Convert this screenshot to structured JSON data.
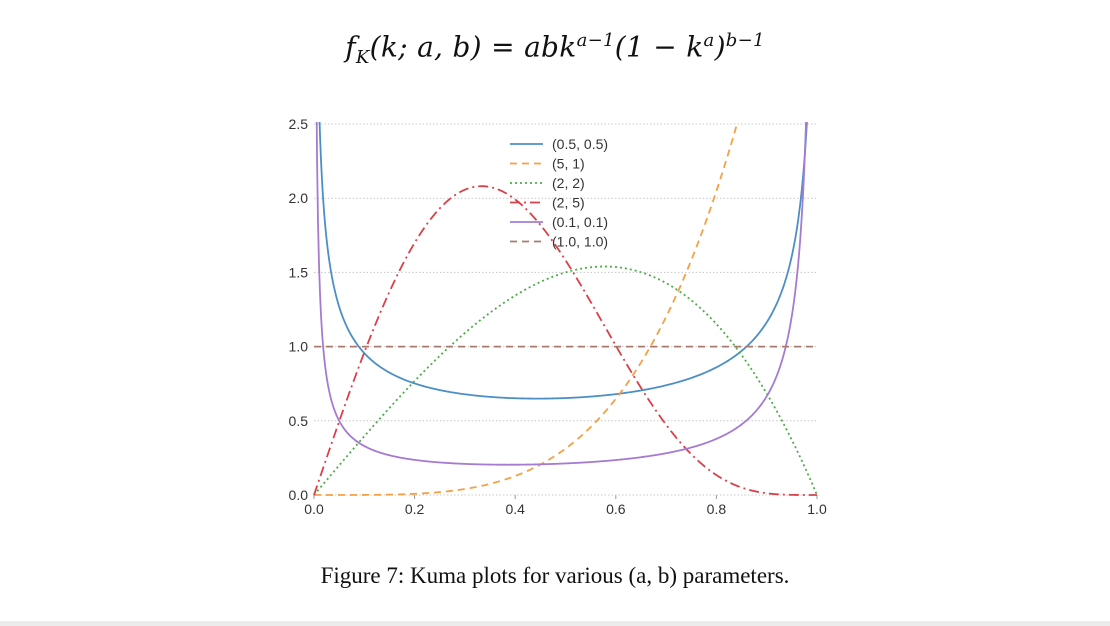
{
  "equation": {
    "lhs": "f",
    "lhs_sub": "K",
    "args": "(k; a, b) = abk",
    "exp1": "a−1",
    "mid": "(1 − k",
    "exp2": "a",
    "close": ")",
    "exp3": "b−1"
  },
  "caption": "Figure 7: Kuma plots for various (a, b) parameters.",
  "chart_data": {
    "type": "line",
    "title": "",
    "xlabel": "",
    "ylabel": "",
    "xlim": [
      0.0,
      1.0
    ],
    "ylim": [
      0.0,
      2.5
    ],
    "grid": "horizontal dotted",
    "legend_position": "upper-center",
    "x_ticks": [
      "0.0",
      "0.2",
      "0.4",
      "0.6",
      "0.8",
      "1.0"
    ],
    "y_ticks": [
      "0.0",
      "0.5",
      "1.0",
      "1.5",
      "2.0",
      "2.5"
    ],
    "series": [
      {
        "name": "(0.5, 0.5)",
        "a": 0.5,
        "b": 0.5,
        "color": "#4c8fc6",
        "dash": "solid"
      },
      {
        "name": "(5, 1)",
        "a": 5,
        "b": 1,
        "color": "#f5a043",
        "dash": "dashed"
      },
      {
        "name": "(2, 2)",
        "a": 2,
        "b": 2,
        "color": "#4dad48",
        "dash": "dotted"
      },
      {
        "name": "(2, 5)",
        "a": 2,
        "b": 5,
        "color": "#d9404a",
        "dash": "dashdot"
      },
      {
        "name": "(0.1, 0.1)",
        "a": 0.1,
        "b": 0.1,
        "color": "#a57bd1",
        "dash": "solid"
      },
      {
        "name": "(1.0, 1.0)",
        "a": 1.0,
        "b": 1.0,
        "color": "#a97a6f",
        "dash": "dashed"
      }
    ]
  }
}
